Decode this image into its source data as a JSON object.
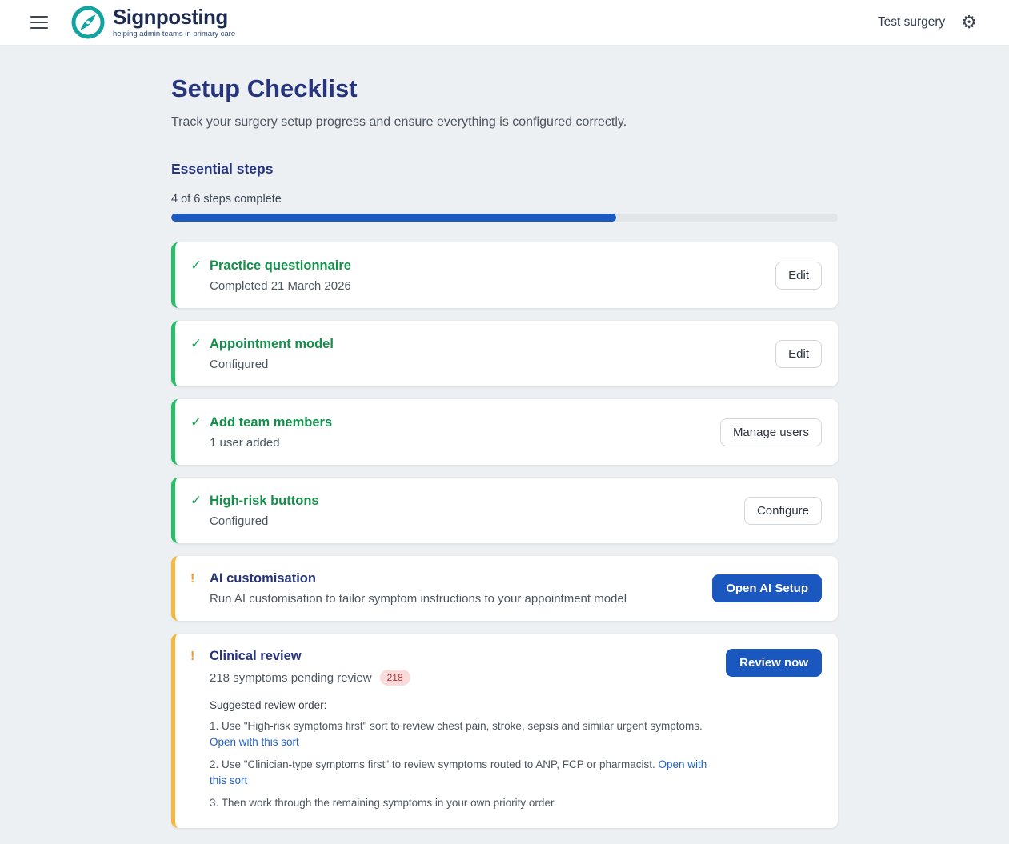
{
  "header": {
    "brand": {
      "name": "Signposting",
      "tagline": "helping admin teams in primary care"
    },
    "surgery_name": "Test surgery"
  },
  "icons": {
    "menu": "menu-icon",
    "settings": "⚙",
    "check": "✓",
    "warning": "!",
    "logo": "compass-logo-icon"
  },
  "page": {
    "title": "Setup Checklist",
    "subtitle": "Track your surgery setup progress and ensure everything is configured correctly."
  },
  "progress": {
    "section_title": "Essential steps",
    "label": "4 of 6 steps complete",
    "percent": 66.7
  },
  "steps": [
    {
      "status": "complete",
      "title": "Practice questionnaire",
      "subtitle": "Completed 21 March 2026",
      "action": "Edit"
    },
    {
      "status": "complete",
      "title": "Appointment model",
      "subtitle": "Configured",
      "action": "Edit"
    },
    {
      "status": "complete",
      "title": "Add team members",
      "subtitle": "1 user added",
      "action": "Manage users"
    },
    {
      "status": "complete",
      "title": "High-risk buttons",
      "subtitle": "Configured",
      "action": "Configure"
    },
    {
      "status": "pending",
      "title": "AI customisation",
      "subtitle": "Run AI customisation to tailor symptom instructions to your appointment model",
      "action": "Open AI Setup"
    },
    {
      "status": "pending",
      "title": "Clinical review",
      "subtitle": "218 symptoms pending review",
      "badge": "218",
      "action": "Review now",
      "details": {
        "heading": "Suggested review order:",
        "items": [
          {
            "text": "1. Use \"High-risk symptoms first\" sort to review chest pain, stroke, sepsis and similar urgent symptoms. ",
            "link": "Open with this sort"
          },
          {
            "text": "2. Use \"Clinician-type symptoms first\" to review symptoms routed to ANP, FCP or pharmacist. ",
            "link": "Open with this sort"
          },
          {
            "text": "3. Then work through the remaining symptoms in your own priority order.",
            "link": ""
          }
        ]
      }
    }
  ],
  "colors": {
    "brand_teal": "#12a3a3",
    "heading_navy": "#27357e",
    "complete_green": "#26bf67",
    "complete_text_green": "#13904a",
    "pending_amber": "#f6b73f",
    "primary_blue": "#1a57be",
    "link_blue": "#2163c5",
    "progress_fill_blue": "#1c5ac1",
    "badge_bg": "#fadbdb",
    "badge_text": "#b23430"
  }
}
